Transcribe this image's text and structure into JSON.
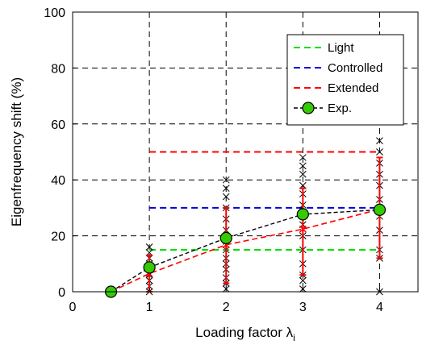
{
  "chart_data": {
    "type": "line",
    "xlabel": "Loading factor λ",
    "xlabel_sub": "i",
    "ylabel": "Eigenfrequency shift (%)",
    "xlim": [
      0,
      4.5
    ],
    "ylim": [
      0,
      100
    ],
    "xticks": [
      0,
      1,
      2,
      3,
      4
    ],
    "yticks": [
      0,
      20,
      40,
      60,
      80,
      100
    ],
    "xtick_labels": [
      "0",
      "1",
      "2",
      "3",
      "4"
    ],
    "ytick_labels": [
      "0",
      "20",
      "40",
      "60",
      "80",
      "100"
    ],
    "grid": true,
    "legend_position": "top-right",
    "series": [
      {
        "name": "Light",
        "color": "#00e000",
        "style": "dashed",
        "x": [
          1,
          4
        ],
        "y": [
          15,
          15
        ]
      },
      {
        "name": "Controlled",
        "color": "#0000e0",
        "style": "dashed",
        "x": [
          1,
          4
        ],
        "y": [
          30,
          30
        ]
      },
      {
        "name": "Extended",
        "color": "#ff0000",
        "style": "dashed",
        "x": [
          1,
          4
        ],
        "y": [
          50,
          50
        ]
      },
      {
        "name": "Exp.",
        "color": "#000000",
        "marker_fill": "#33cc00",
        "style": "dashed-marker",
        "x": [
          0.5,
          1,
          2,
          3,
          4
        ],
        "y": [
          0,
          8.7,
          19.2,
          27.7,
          29.3
        ]
      }
    ],
    "model_mean": {
      "color": "#ff0000",
      "x": [
        0.5,
        1,
        2,
        3,
        4
      ],
      "y": [
        0,
        6.5,
        16.8,
        22.4,
        29.5
      ],
      "err_low": [
        0,
        0,
        3,
        6,
        12
      ],
      "err_high": [
        0,
        13,
        30,
        37,
        48
      ]
    },
    "scatter_samples": {
      "color": "#000000",
      "points": [
        [
          0.5,
          0
        ],
        [
          1,
          0
        ],
        [
          1,
          2
        ],
        [
          1,
          4
        ],
        [
          1,
          6
        ],
        [
          1,
          8
        ],
        [
          1,
          10
        ],
        [
          1,
          12
        ],
        [
          1,
          14
        ],
        [
          1,
          16
        ],
        [
          2,
          1
        ],
        [
          2,
          3
        ],
        [
          2,
          5
        ],
        [
          2,
          8
        ],
        [
          2,
          10
        ],
        [
          2,
          12
        ],
        [
          2,
          15
        ],
        [
          2,
          18
        ],
        [
          2,
          22
        ],
        [
          2,
          26
        ],
        [
          2,
          30
        ],
        [
          2,
          34
        ],
        [
          2,
          37
        ],
        [
          2,
          40
        ],
        [
          3,
          1
        ],
        [
          3,
          4
        ],
        [
          3,
          6
        ],
        [
          3,
          10
        ],
        [
          3,
          15
        ],
        [
          3,
          20
        ],
        [
          3,
          24
        ],
        [
          3,
          28
        ],
        [
          3,
          31
        ],
        [
          3,
          35
        ],
        [
          3,
          38
        ],
        [
          3,
          42
        ],
        [
          3,
          45
        ],
        [
          3,
          48
        ],
        [
          4,
          0
        ],
        [
          4,
          12
        ],
        [
          4,
          15
        ],
        [
          4,
          22
        ],
        [
          4,
          27
        ],
        [
          4,
          30
        ],
        [
          4,
          33
        ],
        [
          4,
          38
        ],
        [
          4,
          42
        ],
        [
          4,
          46
        ],
        [
          4,
          50
        ],
        [
          4,
          54
        ]
      ]
    }
  }
}
